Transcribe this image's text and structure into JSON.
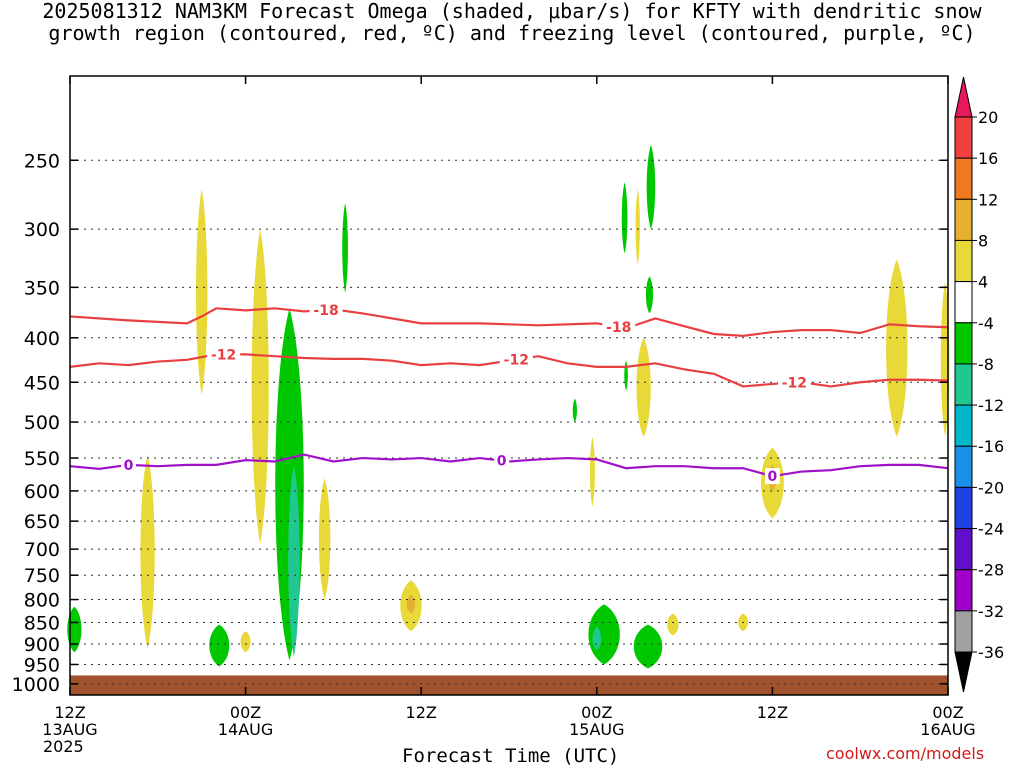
{
  "chart_data": {
    "type": "heatmap",
    "title_line1": "2025081312 NAM3KM Forecast Omega (shaded, μbar/s) for KFTY with dendritic snow",
    "title_line2": "growth region (contoured, red, ºC) and freezing level (contoured, purple, ºC)",
    "xlabel": "Forecast Time (UTC)",
    "credit": "coolwx.com/models",
    "x_ticks": [
      {
        "hour": 0,
        "line1": "12Z",
        "line2": "13AUG",
        "line3": "2025"
      },
      {
        "hour": 12,
        "line1": "00Z",
        "line2": "14AUG",
        "line3": ""
      },
      {
        "hour": 24,
        "line1": "12Z",
        "line2": "",
        "line3": ""
      },
      {
        "hour": 36,
        "line1": "00Z",
        "line2": "15AUG",
        "line3": ""
      },
      {
        "hour": 48,
        "line1": "12Z",
        "line2": "",
        "line3": ""
      },
      {
        "hour": 60,
        "line1": "00Z",
        "line2": "16AUG",
        "line3": ""
      }
    ],
    "x_range_hours": [
      0,
      60
    ],
    "y_ticks": [
      250,
      300,
      350,
      400,
      450,
      500,
      550,
      600,
      650,
      700,
      750,
      800,
      850,
      900,
      950,
      1000
    ],
    "y_range_hpa": [
      200,
      1030
    ],
    "y_scale": "log",
    "grid": true,
    "colorbar": {
      "labels": [
        "20",
        "16",
        "12",
        "8",
        "4",
        "-4",
        "-8",
        "-12",
        "-16",
        "-20",
        "-24",
        "-28",
        "-32",
        "-36"
      ],
      "colors": [
        "#e8195a",
        "#f04040",
        "#f07820",
        "#e8b030",
        "#e8d838",
        "#ffffff",
        "#00c800",
        "#20c890",
        "#00b8c8",
        "#1890e8",
        "#2040e0",
        "#6010c8",
        "#a000c8",
        "#a0a0a0",
        "#000000"
      ]
    },
    "contours": [
      {
        "label": "-18",
        "color": "#e84040",
        "hour": [
          0,
          4,
          8,
          9,
          10,
          12,
          14,
          16,
          18,
          20,
          24,
          28,
          32,
          36,
          38,
          40,
          42,
          44,
          46,
          48,
          50,
          52,
          54,
          56,
          58,
          60
        ],
        "hpa": [
          378,
          382,
          385,
          378,
          370,
          372,
          370,
          373,
          371,
          375,
          385,
          385,
          387,
          385,
          390,
          380,
          388,
          396,
          398,
          394,
          392,
          392,
          395,
          386,
          388,
          389
        ],
        "label_hours": [
          17.5,
          37.5
        ]
      },
      {
        "label": "-12",
        "color": "#e84040",
        "hour": [
          0,
          2,
          4,
          6,
          8,
          10,
          12,
          14,
          16,
          18,
          20,
          22,
          24,
          26,
          28,
          30,
          32,
          34,
          36,
          38,
          40,
          42,
          44,
          46,
          48,
          50,
          52,
          54,
          56,
          58,
          60
        ],
        "hpa": [
          432,
          428,
          430,
          426,
          424,
          418,
          418,
          420,
          422,
          423,
          423,
          425,
          430,
          428,
          430,
          425,
          420,
          428,
          432,
          432,
          428,
          435,
          440,
          455,
          452,
          450,
          455,
          450,
          447,
          447,
          448
        ],
        "label_hours": [
          10.5,
          30.5,
          49.5
        ]
      },
      {
        "label": "0",
        "color": "#a010c8",
        "hour": [
          0,
          2,
          4,
          6,
          8,
          10,
          12,
          14,
          16,
          18,
          20,
          22,
          24,
          26,
          28,
          30,
          32,
          34,
          36,
          38,
          40,
          42,
          44,
          46,
          48,
          50,
          52,
          54,
          56,
          58,
          60
        ],
        "hpa": [
          562,
          566,
          560,
          562,
          560,
          560,
          553,
          555,
          545,
          555,
          550,
          552,
          550,
          555,
          550,
          555,
          552,
          550,
          552,
          565,
          562,
          562,
          565,
          565,
          577,
          570,
          568,
          562,
          560,
          560,
          565
        ],
        "label_hours": [
          4,
          29.5,
          48
        ]
      }
    ],
    "omega_cells": [
      {
        "hour": 9.0,
        "p_top": 270,
        "p_bot": 465,
        "width_h": 0.8,
        "color": "#e8d838"
      },
      {
        "hour": 13.0,
        "p_top": 300,
        "p_bot": 690,
        "width_h": 1.2,
        "color": "#e8d838"
      },
      {
        "hour": 5.3,
        "p_top": 545,
        "p_bot": 910,
        "width_h": 1.0,
        "color": "#e8d838"
      },
      {
        "hour": 15.0,
        "p_top": 370,
        "p_bot": 940,
        "width_h": 2.0,
        "color": "#00c800"
      },
      {
        "hour": 15.3,
        "p_top": 560,
        "p_bot": 930,
        "width_h": 0.8,
        "color": "#20c890"
      },
      {
        "hour": 17.4,
        "p_top": 580,
        "p_bot": 800,
        "width_h": 0.8,
        "color": "#e8d838"
      },
      {
        "hour": 18.8,
        "p_top": 280,
        "p_bot": 355,
        "width_h": 0.4,
        "color": "#00c800"
      },
      {
        "hour": 10.2,
        "p_top": 855,
        "p_bot": 955,
        "width_h": 1.4,
        "color": "#00c800"
      },
      {
        "hour": 12.0,
        "p_top": 870,
        "p_bot": 920,
        "width_h": 0.7,
        "color": "#e8d838"
      },
      {
        "hour": 0.3,
        "p_top": 815,
        "p_bot": 920,
        "width_h": 1.0,
        "color": "#00c800"
      },
      {
        "hour": 23.3,
        "p_top": 760,
        "p_bot": 870,
        "width_h": 1.5,
        "color": "#e8d838"
      },
      {
        "hour": 23.3,
        "p_top": 790,
        "p_bot": 830,
        "width_h": 0.6,
        "color": "#e8b030"
      },
      {
        "hour": 35.7,
        "p_top": 520,
        "p_bot": 625,
        "width_h": 0.35,
        "color": "#e8d838"
      },
      {
        "hour": 34.5,
        "p_top": 470,
        "p_bot": 500,
        "width_h": 0.3,
        "color": "#00c800"
      },
      {
        "hour": 36.5,
        "p_top": 810,
        "p_bot": 950,
        "width_h": 2.2,
        "color": "#00c800"
      },
      {
        "hour": 36.0,
        "p_top": 860,
        "p_bot": 915,
        "width_h": 0.6,
        "color": "#20c890"
      },
      {
        "hour": 37.9,
        "p_top": 265,
        "p_bot": 320,
        "width_h": 0.4,
        "color": "#00c800"
      },
      {
        "hour": 38.8,
        "p_top": 270,
        "p_bot": 330,
        "width_h": 0.3,
        "color": "#e8d838"
      },
      {
        "hour": 39.7,
        "p_top": 240,
        "p_bot": 300,
        "width_h": 0.6,
        "color": "#00c800"
      },
      {
        "hour": 39.6,
        "p_top": 340,
        "p_bot": 375,
        "width_h": 0.5,
        "color": "#00c800"
      },
      {
        "hour": 39.2,
        "p_top": 400,
        "p_bot": 520,
        "width_h": 1.0,
        "color": "#e8d838"
      },
      {
        "hour": 38.0,
        "p_top": 425,
        "p_bot": 460,
        "width_h": 0.25,
        "color": "#00c800"
      },
      {
        "hour": 39.5,
        "p_top": 855,
        "p_bot": 960,
        "width_h": 2.0,
        "color": "#00c800"
      },
      {
        "hour": 41.2,
        "p_top": 830,
        "p_bot": 880,
        "width_h": 0.8,
        "color": "#e8d838"
      },
      {
        "hour": 46.0,
        "p_top": 830,
        "p_bot": 870,
        "width_h": 0.7,
        "color": "#e8d838"
      },
      {
        "hour": 48.0,
        "p_top": 535,
        "p_bot": 645,
        "width_h": 1.6,
        "color": "#e8d838"
      },
      {
        "hour": 48.0,
        "p_top": 560,
        "p_bot": 600,
        "width_h": 0.6,
        "color": "#e8b030"
      },
      {
        "hour": 56.5,
        "p_top": 325,
        "p_bot": 520,
        "width_h": 1.5,
        "color": "#e8d838"
      },
      {
        "hour": 59.8,
        "p_top": 345,
        "p_bot": 520,
        "width_h": 0.6,
        "color": "#e8d838"
      }
    ]
  }
}
